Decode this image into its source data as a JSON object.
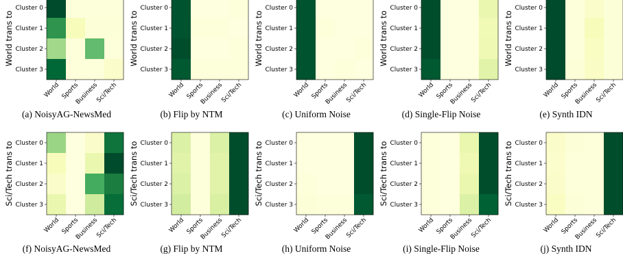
{
  "figure": {
    "colormap": "Greens",
    "colors": {
      "low": "#ffffe5",
      "mid": "#78c679",
      "high": "#004529"
    }
  },
  "chart_data": [
    {
      "type": "heatmap",
      "caption": "(a) NoisyAG-NewsMed",
      "ylabel": "World trans to",
      "rows": [
        "Cluster 0",
        "Cluster 1",
        "Cluster 2",
        "Cluster 3"
      ],
      "columns": [
        "World",
        "Sports",
        "Business",
        "Sci/Tech"
      ],
      "values": [
        [
          0.98,
          0.03,
          0.03,
          0.03
        ],
        [
          0.7,
          0.12,
          0.04,
          0.04
        ],
        [
          0.4,
          0.03,
          0.55,
          0.03
        ],
        [
          0.88,
          0.03,
          0.03,
          0.08
        ]
      ]
    },
    {
      "type": "heatmap",
      "caption": "(b) Flip by NTM",
      "ylabel": "World trans to",
      "rows": [
        "Cluster 0",
        "Cluster 1",
        "Cluster 2",
        "Cluster 3"
      ],
      "columns": [
        "World",
        "Sports",
        "Business",
        "Sci/Tech"
      ],
      "values": [
        [
          0.95,
          0.02,
          0.02,
          0.03
        ],
        [
          0.95,
          0.03,
          0.03,
          0.02
        ],
        [
          0.97,
          0.02,
          0.02,
          0.03
        ],
        [
          0.93,
          0.03,
          0.03,
          0.03
        ]
      ]
    },
    {
      "type": "heatmap",
      "caption": "(c) Uniform Noise",
      "ylabel": "World trans to",
      "rows": [
        "Cluster 0",
        "Cluster 1",
        "Cluster 2",
        "Cluster 3"
      ],
      "columns": [
        "World",
        "Sports",
        "Business",
        "Sci/Tech"
      ],
      "values": [
        [
          0.95,
          0.02,
          0.02,
          0.02
        ],
        [
          0.95,
          0.03,
          0.02,
          0.02
        ],
        [
          0.95,
          0.02,
          0.02,
          0.03
        ],
        [
          0.95,
          0.02,
          0.03,
          0.02
        ]
      ]
    },
    {
      "type": "heatmap",
      "caption": "(d) Single-Flip Noise",
      "ylabel": "World trans to",
      "rows": [
        "Cluster 0",
        "Cluster 1",
        "Cluster 2",
        "Cluster 3"
      ],
      "columns": [
        "World",
        "Sports",
        "Business",
        "Sci/Tech"
      ],
      "values": [
        [
          0.97,
          0.02,
          0.02,
          0.18
        ],
        [
          0.97,
          0.02,
          0.02,
          0.15
        ],
        [
          0.97,
          0.02,
          0.02,
          0.16
        ],
        [
          0.93,
          0.02,
          0.02,
          0.22
        ]
      ]
    },
    {
      "type": "heatmap",
      "caption": "(e) Synth IDN",
      "ylabel": "World trans to",
      "rows": [
        "Cluster 0",
        "Cluster 1",
        "Cluster 2",
        "Cluster 3"
      ],
      "columns": [
        "World",
        "Sports",
        "Business",
        "Sci/Tech"
      ],
      "values": [
        [
          0.98,
          0.03,
          0.08,
          0.04
        ],
        [
          0.98,
          0.03,
          0.12,
          0.04
        ],
        [
          0.98,
          0.03,
          0.1,
          0.04
        ],
        [
          0.98,
          0.04,
          0.09,
          0.04
        ]
      ]
    },
    {
      "type": "heatmap",
      "caption": "(f) NoisyAG-NewsMed",
      "ylabel": "Sci/Tech trans to",
      "rows": [
        "Cluster 0",
        "Cluster 1",
        "Cluster 2",
        "Cluster 3"
      ],
      "columns": [
        "World",
        "Sports",
        "Business",
        "Sci/Tech"
      ],
      "values": [
        [
          0.42,
          0.02,
          0.08,
          0.82
        ],
        [
          0.12,
          0.02,
          0.18,
          0.98
        ],
        [
          0.08,
          0.02,
          0.62,
          0.78
        ],
        [
          0.18,
          0.02,
          0.28,
          0.85
        ]
      ]
    },
    {
      "type": "heatmap",
      "caption": "(g) Flip by NTM",
      "ylabel": "Sci/Tech trans to",
      "rows": [
        "Cluster 0",
        "Cluster 1",
        "Cluster 2",
        "Cluster 3"
      ],
      "columns": [
        "World",
        "Sports",
        "Business",
        "Sci/Tech"
      ],
      "values": [
        [
          0.24,
          0.03,
          0.24,
          0.97
        ],
        [
          0.22,
          0.03,
          0.22,
          0.97
        ],
        [
          0.24,
          0.03,
          0.22,
          0.97
        ],
        [
          0.27,
          0.03,
          0.25,
          0.97
        ]
      ]
    },
    {
      "type": "heatmap",
      "caption": "(h) Uniform Noise",
      "ylabel": "Sci/Tech trans to",
      "rows": [
        "Cluster 0",
        "Cluster 1",
        "Cluster 2",
        "Cluster 3"
      ],
      "columns": [
        "World",
        "Sports",
        "Business",
        "Sci/Tech"
      ],
      "values": [
        [
          0.02,
          0.02,
          0.02,
          0.97
        ],
        [
          0.02,
          0.02,
          0.02,
          0.97
        ],
        [
          0.03,
          0.02,
          0.02,
          0.97
        ],
        [
          0.04,
          0.03,
          0.03,
          0.93
        ]
      ]
    },
    {
      "type": "heatmap",
      "caption": "(i) Single-Flip Noise",
      "ylabel": "Sci/Tech trans to",
      "rows": [
        "Cluster 0",
        "Cluster 1",
        "Cluster 2",
        "Cluster 3"
      ],
      "columns": [
        "World",
        "Sports",
        "Business",
        "Sci/Tech"
      ],
      "values": [
        [
          0.03,
          0.02,
          0.18,
          0.97
        ],
        [
          0.03,
          0.02,
          0.16,
          0.97
        ],
        [
          0.03,
          0.02,
          0.18,
          0.97
        ],
        [
          0.03,
          0.02,
          0.24,
          0.9
        ]
      ]
    },
    {
      "type": "heatmap",
      "caption": "(j) Synth IDN",
      "ylabel": "Sci/Tech trans to",
      "rows": [
        "Cluster 0",
        "Cluster 1",
        "Cluster 2",
        "Cluster 3"
      ],
      "columns": [
        "World",
        "Sports",
        "Business",
        "Sci/Tech"
      ],
      "values": [
        [
          0.08,
          0.04,
          0.03,
          0.97
        ],
        [
          0.07,
          0.03,
          0.03,
          0.97
        ],
        [
          0.08,
          0.03,
          0.03,
          0.97
        ],
        [
          0.1,
          0.04,
          0.03,
          0.97
        ]
      ]
    }
  ]
}
